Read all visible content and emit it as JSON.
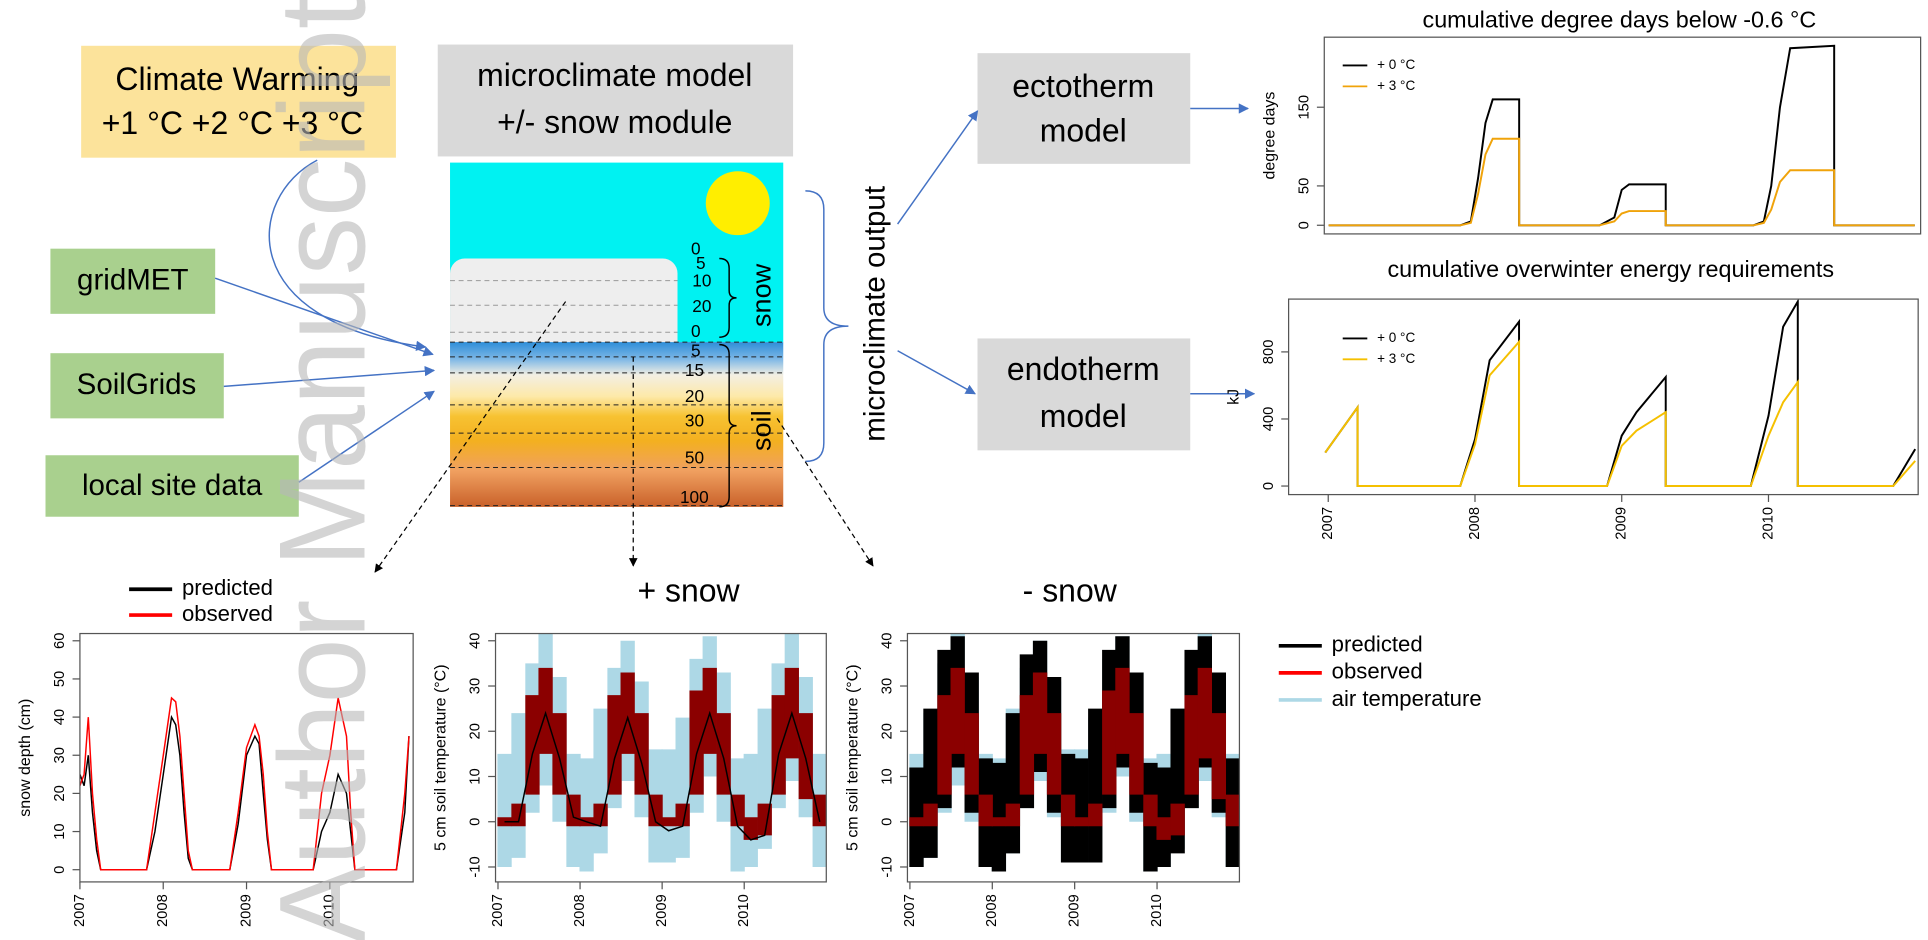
{
  "watermark": "Author Manuscript",
  "climate_warming": [
    "Climate Warming",
    "+1 °C +2 °C +3 °C"
  ],
  "model": [
    "microclimate model",
    "+/- snow module"
  ],
  "sources": [
    "gridMET",
    "SoilGrids",
    "local site data"
  ],
  "layers": {
    "snow_label": "snow",
    "snow_depths": [
      0,
      5,
      10,
      20,
      0
    ],
    "soil_label": "soil",
    "soil_depths": [
      5,
      15,
      20,
      30,
      50,
      100
    ]
  },
  "output_label": "microclimate output",
  "ectotherm": [
    "ectotherm",
    "model"
  ],
  "endotherm": [
    "endotherm",
    "model"
  ],
  "panel_titles": [
    "+ snow",
    "- snow"
  ],
  "charts": [
    {
      "type": "line",
      "title": "cumulative degree days below -0.6 °C",
      "ylabel": "degree days",
      "xlim": [
        2006.97,
        2011.04
      ],
      "ylim": [
        -11,
        239
      ],
      "yticks": [
        0,
        50,
        150
      ],
      "x": [
        2007.0,
        2007.9,
        2007.97,
        2008.02,
        2008.07,
        2008.12,
        2008.3,
        2008.3,
        2008.85,
        2008.95,
        2009.0,
        2009.05,
        2009.3,
        2009.3,
        2009.9,
        2009.97,
        2010.02,
        2010.08,
        2010.15,
        2010.45,
        2010.45,
        2011.0
      ],
      "series": [
        {
          "name": "+ 0 °C",
          "color": "#000000",
          "values": [
            0,
            0,
            5,
            60,
            130,
            160,
            160,
            0,
            0,
            10,
            45,
            52,
            52,
            0,
            0,
            5,
            50,
            150,
            225,
            228,
            0,
            0
          ]
        },
        {
          "name": "+ 3 °C",
          "color": "#f0a30a",
          "values": [
            0,
            0,
            3,
            40,
            90,
            110,
            110,
            0,
            0,
            5,
            15,
            18,
            18,
            0,
            0,
            3,
            20,
            55,
            70,
            70,
            0,
            0
          ]
        }
      ]
    },
    {
      "type": "line",
      "title": "cumulative overwinter energy requirements",
      "ylabel": "kJ",
      "xlim": [
        2006.73,
        2011.02
      ],
      "ylim": [
        -51,
        1115
      ],
      "yticks": [
        0,
        400,
        800
      ],
      "xticks": [
        2007,
        2008,
        2009,
        2010
      ],
      "x": [
        2006.98,
        2007.2,
        2007.2,
        2007.9,
        2008.0,
        2008.1,
        2008.3,
        2008.3,
        2008.9,
        2009.0,
        2009.1,
        2009.3,
        2009.3,
        2009.88,
        2010.0,
        2010.1,
        2010.2,
        2010.2,
        2010.85,
        2011.0
      ],
      "series": [
        {
          "name": "+ 0 °C",
          "color": "#000000",
          "values": [
            200,
            470,
            0,
            0,
            280,
            750,
            980,
            0,
            0,
            300,
            440,
            650,
            0,
            0,
            420,
            950,
            1100,
            0,
            0,
            220
          ]
        },
        {
          "name": "+ 3 °C",
          "color": "#f5c000",
          "values": [
            200,
            470,
            0,
            0,
            250,
            660,
            860,
            0,
            0,
            240,
            330,
            440,
            0,
            0,
            300,
            500,
            620,
            0,
            0,
            150
          ]
        }
      ]
    },
    {
      "type": "line",
      "ylabel": "snow depth (cm)",
      "xlim": [
        2007.0,
        2011.0
      ],
      "ylim": [
        -3.2,
        61.9
      ],
      "yticks": [
        0,
        10,
        20,
        30,
        40,
        50,
        60
      ],
      "xticks": [
        2007,
        2008,
        2009,
        2010
      ],
      "x": [
        2007.0,
        2007.05,
        2007.1,
        2007.15,
        2007.2,
        2007.25,
        2007.3,
        2007.8,
        2007.9,
        2008.0,
        2008.1,
        2008.15,
        2008.2,
        2008.25,
        2008.3,
        2008.35,
        2008.8,
        2008.9,
        2009.0,
        2009.1,
        2009.15,
        2009.2,
        2009.25,
        2009.3,
        2009.8,
        2009.9,
        2010.0,
        2010.1,
        2010.2,
        2010.25,
        2010.3,
        2010.8,
        2010.9,
        2010.95
      ],
      "series": [
        {
          "name": "predicted",
          "color": "#000000",
          "values": [
            25,
            22,
            30,
            15,
            5,
            0,
            0,
            0,
            10,
            25,
            40,
            38,
            30,
            15,
            3,
            0,
            0,
            12,
            30,
            35,
            33,
            20,
            8,
            0,
            0,
            10,
            15,
            25,
            20,
            10,
            0,
            0,
            15,
            35
          ]
        },
        {
          "name": "observed",
          "color": "#ff0000",
          "values": [
            22,
            25,
            40,
            20,
            8,
            0,
            0,
            0,
            15,
            30,
            45,
            44,
            35,
            20,
            5,
            0,
            0,
            15,
            32,
            38,
            35,
            25,
            10,
            0,
            0,
            20,
            30,
            45,
            35,
            15,
            0,
            0,
            20,
            35
          ]
        }
      ]
    },
    {
      "type": "band",
      "ylabel": "5 cm soil temperature (°C)",
      "xlim": [
        2006.97,
        2011.0
      ],
      "ylim": [
        -13.3,
        41.6
      ],
      "yticks": [
        -10,
        0,
        10,
        20,
        30,
        40
      ],
      "xticks": [
        2007,
        2008,
        2009,
        2010
      ],
      "x": [
        2007.08,
        2007.25,
        2007.42,
        2007.58,
        2007.75,
        2007.92,
        2008.08,
        2008.25,
        2008.42,
        2008.58,
        2008.75,
        2008.92,
        2009.08,
        2009.25,
        2009.42,
        2009.58,
        2009.75,
        2009.92,
        2010.08,
        2010.25,
        2010.42,
        2010.58,
        2010.75,
        2010.92
      ],
      "series": [
        {
          "name": "air temperature",
          "color": "#add8e6",
          "low": [
            -10,
            -8,
            2,
            8,
            0,
            -10,
            -11,
            -7,
            3,
            9,
            1,
            -9,
            -9,
            -8,
            2,
            10,
            0,
            -11,
            -10,
            -6,
            3,
            9,
            1,
            -10
          ],
          "high": [
            15,
            24,
            35,
            42,
            32,
            15,
            14,
            25,
            34,
            40,
            31,
            16,
            16,
            23,
            36,
            41,
            33,
            14,
            15,
            25,
            35,
            42,
            32,
            15
          ]
        },
        {
          "name": "observed",
          "color": "#8b0000",
          "low": [
            -1,
            -1,
            6,
            15,
            6,
            -1,
            -1,
            -1,
            6,
            15,
            6,
            -1,
            -1,
            -1,
            6,
            15,
            6,
            -1,
            -4,
            -3,
            6,
            14,
            5,
            -1
          ],
          "high": [
            1,
            4,
            28,
            34,
            24,
            6,
            1,
            4,
            28,
            33,
            24,
            6,
            1,
            4,
            29,
            34,
            24,
            6,
            1,
            4,
            28,
            34,
            24,
            6
          ]
        },
        {
          "name": "predicted",
          "color": "#000000",
          "values": [
            0,
            0,
            15,
            24,
            14,
            1,
            0,
            -1,
            14,
            23,
            13,
            0,
            -2,
            -1,
            15,
            24,
            14,
            -1,
            -4,
            -3,
            15,
            24,
            14,
            0
          ]
        }
      ]
    },
    {
      "type": "band",
      "ylabel": "5 cm soil temperature (°C)",
      "xlim": [
        2006.97,
        2011.0
      ],
      "ylim": [
        -13.3,
        41.6
      ],
      "yticks": [
        -10,
        0,
        10,
        20,
        30,
        40
      ],
      "xticks": [
        2007,
        2008,
        2009,
        2010
      ],
      "x": [
        2007.08,
        2007.25,
        2007.42,
        2007.58,
        2007.75,
        2007.92,
        2008.08,
        2008.25,
        2008.42,
        2008.58,
        2008.75,
        2008.92,
        2009.08,
        2009.25,
        2009.42,
        2009.58,
        2009.75,
        2009.92,
        2010.08,
        2010.25,
        2010.42,
        2010.58,
        2010.75,
        2010.92
      ],
      "series": [
        {
          "name": "air temperature",
          "color": "#add8e6",
          "low": [
            -10,
            -8,
            2,
            8,
            0,
            -10,
            -11,
            -7,
            3,
            9,
            1,
            -9,
            -9,
            -8,
            2,
            10,
            0,
            -11,
            -10,
            -6,
            3,
            9,
            1,
            -10
          ],
          "high": [
            15,
            24,
            35,
            42,
            32,
            15,
            14,
            25,
            34,
            40,
            31,
            16,
            16,
            23,
            36,
            41,
            33,
            14,
            15,
            25,
            35,
            42,
            32,
            15
          ]
        },
        {
          "name": "predicted",
          "color": "#000000",
          "low": [
            -10,
            -8,
            3,
            12,
            2,
            -10,
            -11,
            -7,
            3,
            11,
            2,
            -9,
            -9,
            -9,
            3,
            12,
            2,
            -11,
            -10,
            -7,
            3,
            12,
            2,
            -10
          ],
          "high": [
            12,
            25,
            38,
            41,
            33,
            14,
            13,
            24,
            37,
            40,
            32,
            15,
            14,
            25,
            38,
            41,
            33,
            13,
            12,
            25,
            38,
            41,
            33,
            14
          ]
        },
        {
          "name": "observed",
          "color": "#8b0000",
          "low": [
            -1,
            -1,
            6,
            15,
            6,
            -1,
            -1,
            -1,
            6,
            15,
            6,
            -1,
            -1,
            -1,
            6,
            15,
            6,
            -1,
            -4,
            -3,
            6,
            14,
            5,
            -1
          ],
          "high": [
            1,
            4,
            28,
            34,
            24,
            6,
            1,
            4,
            28,
            33,
            24,
            6,
            1,
            4,
            29,
            34,
            24,
            6,
            1,
            4,
            28,
            34,
            24,
            6
          ]
        }
      ]
    }
  ]
}
